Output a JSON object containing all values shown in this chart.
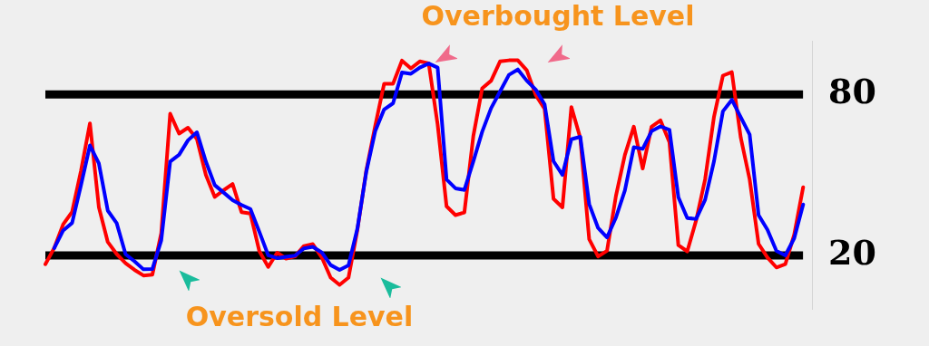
{
  "chart_data": {
    "type": "line",
    "ylim": [
      0,
      100
    ],
    "yticks": [
      20,
      80
    ],
    "tick_labels": "y",
    "grid": false,
    "legend": false,
    "marker": "none",
    "line_style": "solid",
    "categories": [
      null,
      null,
      null,
      null,
      null,
      null,
      null,
      null,
      null,
      null,
      null,
      null,
      null,
      null,
      null,
      null,
      null,
      null,
      null,
      null,
      null,
      null,
      null,
      null,
      null,
      null,
      null,
      null,
      null,
      null,
      null,
      null,
      null,
      null,
      null,
      null,
      null,
      null,
      null,
      null,
      null,
      null,
      null,
      null,
      null,
      null,
      null,
      null,
      null,
      null,
      null,
      null,
      null,
      null,
      null,
      null,
      null,
      null,
      null,
      null,
      null,
      null,
      null,
      null,
      null,
      null,
      null,
      null,
      null,
      null,
      null,
      null,
      null,
      null,
      null,
      null,
      null,
      null,
      null,
      null,
      null,
      null,
      null,
      null,
      null,
      null,
      null
    ],
    "annotations": [
      "Overbought Level",
      "Oversold Level"
    ],
    "ref_lines": [
      {
        "axis": "y",
        "value": 80,
        "color": "#000000"
      },
      {
        "axis": "y",
        "value": 20,
        "color": "#000000"
      }
    ],
    "series": [
      {
        "color": "#0000ff",
        "values": [
          null,
          22.7,
          29.3,
          32.1,
          46.2,
          61,
          54.3,
          36.7,
          32,
          20.4,
          17.8,
          14.8,
          14.9,
          25.6,
          55,
          57.5,
          62.9,
          65.9,
          55,
          46.2,
          43.4,
          40.6,
          38.8,
          37.3,
          28.8,
          20,
          19,
          19.5,
          19.9,
          22.6,
          23.2,
          21.1,
          16.4,
          14.6,
          16.3,
          30,
          51.2,
          66.3,
          74.4,
          76.7,
          88.2,
          87.7,
          90,
          91.5,
          90,
          48.3,
          45,
          44.4,
          55,
          66.1,
          74.9,
          81.1,
          87.3,
          89.3,
          85.1,
          81.8,
          76.3,
          55.1,
          50,
          63.3,
          64.2,
          39.1,
          30.2,
          26.7,
          34.1,
          44.2,
          60.3,
          59.7,
          66.3,
          68.1,
          66.8,
          41.7,
          33.9,
          33.6,
          40.7,
          55.1,
          73.7,
          78,
          71.5,
          65,
          35,
          29.5,
          21.7,
          20,
          26.4,
          39,
          null
        ]
      },
      {
        "color": "#ff0000",
        "values": [
          16.7,
          22.8,
          31.6,
          36.2,
          51.6,
          69.2,
          38,
          25,
          20.5,
          17.1,
          14.6,
          12.5,
          12.8,
          28.3,
          72.8,
          65.4,
          67.6,
          63.4,
          50,
          41.8,
          44.3,
          46.6,
          36.1,
          35.6,
          21.6,
          15.7,
          21,
          18.8,
          19.6,
          23.5,
          24.2,
          19.3,
          11.7,
          9,
          11.7,
          29.5,
          51.7,
          68.3,
          84,
          84,
          92.6,
          89.7,
          92.3,
          91.6,
          68.8,
          38.3,
          35,
          36,
          64.4,
          82.3,
          85.1,
          92.3,
          92.7,
          92.7,
          89,
          79.8,
          74.6,
          41.1,
          37.9,
          75.3,
          63.8,
          26,
          19.6,
          21.7,
          42.2,
          57.4,
          68,
          52.4,
          68,
          70.3,
          62.2,
          23.8,
          21.5,
          33.1,
          48.3,
          71.7,
          87,
          88.3,
          63.9,
          48.3,
          24.3,
          19.2,
          15.5,
          16.7,
          27.8,
          45.4,
          null
        ]
      }
    ]
  }
}
